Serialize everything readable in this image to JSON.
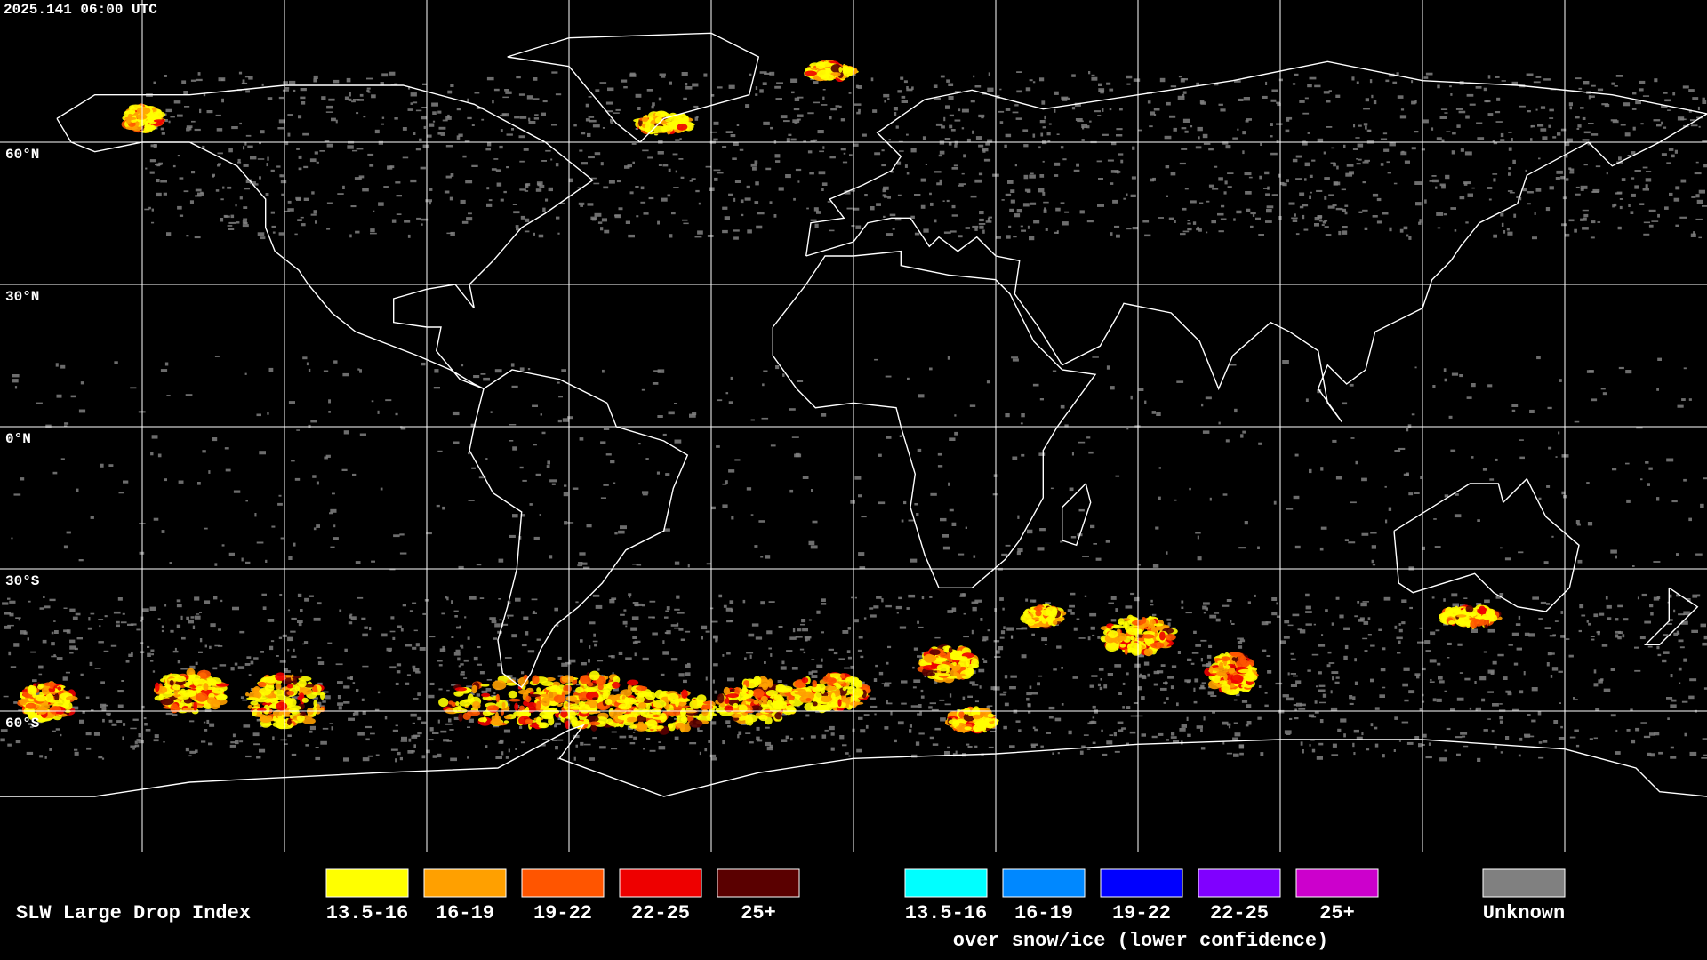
{
  "timestamp": "2025.141 06:00 UTC",
  "latitude_labels": [
    "60°N",
    "30°N",
    "0°N",
    "30°S",
    "60°S"
  ],
  "legend": {
    "title": "SLW Large Drop Index",
    "items": [
      {
        "label": "13.5-16",
        "color": "#ffff00"
      },
      {
        "label": "16-19",
        "color": "#ffa000"
      },
      {
        "label": "19-22",
        "color": "#ff5500"
      },
      {
        "label": "22-25",
        "color": "#ee0000"
      },
      {
        "label": "25+",
        "color": "#5a0000"
      }
    ],
    "snow_ice_items": [
      {
        "label": "13.5-16",
        "color": "#00ffff"
      },
      {
        "label": "16-19",
        "color": "#0088ff"
      },
      {
        "label": "19-22",
        "color": "#0000ff"
      },
      {
        "label": "22-25",
        "color": "#8000ff"
      },
      {
        "label": "25+",
        "color": "#cc00cc"
      }
    ],
    "snow_ice_note": "over snow/ice (lower confidence)",
    "unknown": {
      "label": "Unknown",
      "color": "#808080"
    }
  }
}
